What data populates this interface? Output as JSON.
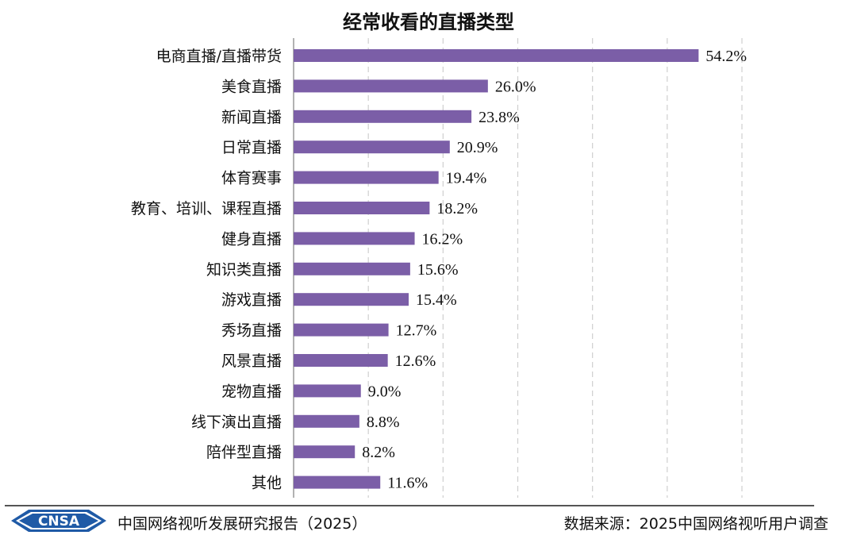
{
  "title": "经常收看的直播类型",
  "chart_data": {
    "type": "bar",
    "orientation": "horizontal",
    "categories": [
      "电商直播/直播带货",
      "美食直播",
      "新闻直播",
      "日常直播",
      "体育赛事",
      "教育、培训、课程直播",
      "健身直播",
      "知识类直播",
      "游戏直播",
      "秀场直播",
      "风景直播",
      "宠物直播",
      "线下演出直播",
      "陪伴型直播",
      "其他"
    ],
    "values": [
      54.2,
      26.0,
      23.8,
      20.9,
      19.4,
      18.2,
      16.2,
      15.6,
      15.4,
      12.7,
      12.6,
      9.0,
      8.8,
      8.2,
      11.6
    ],
    "value_labels": [
      "54.2%",
      "26.0%",
      "23.8%",
      "20.9%",
      "19.4%",
      "18.2%",
      "16.2%",
      "15.6%",
      "15.4%",
      "12.7%",
      "12.6%",
      "9.0%",
      "8.8%",
      "8.2%",
      "11.6%"
    ],
    "xlim": [
      0,
      60
    ],
    "grid": "vertical dashed",
    "bar_color": "#7b5ea7"
  },
  "footer": {
    "logo_text": "CNSA",
    "left": "中国网络视听发展研究报告（2025）",
    "right": "数据来源：2025中国网络视听用户调查"
  }
}
